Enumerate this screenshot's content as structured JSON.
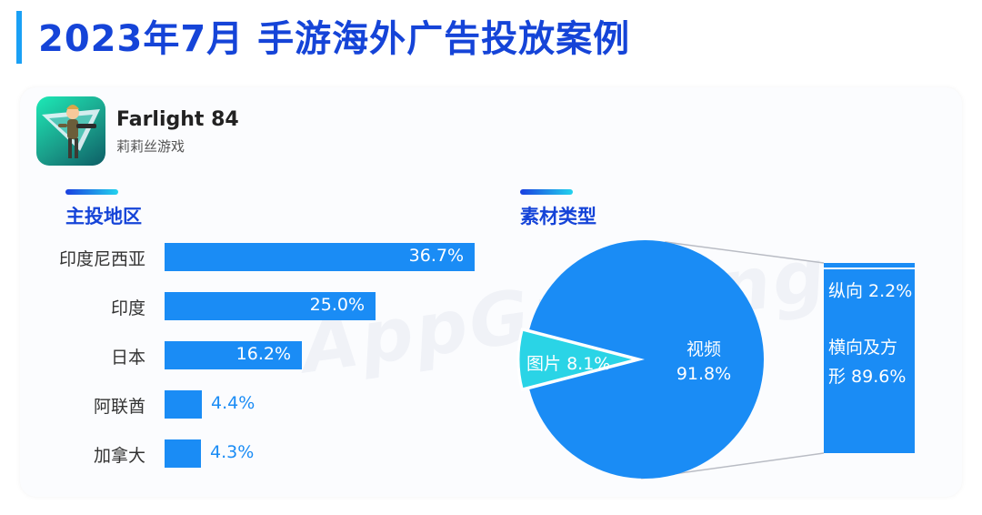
{
  "page": {
    "title": "2023年7月 手游海外广告投放案例"
  },
  "app": {
    "name": "Farlight 84",
    "developer": "莉莉丝游戏",
    "icon": "game-character-icon"
  },
  "watermark": "AppGrowing",
  "colors": {
    "title": "#1544d8",
    "accent": "#1aa0f5",
    "bar": "#1a8cf5",
    "pie_small": "#2ad4e6"
  },
  "regions": {
    "title": "主投地区",
    "chart_data": {
      "type": "bar",
      "orientation": "horizontal",
      "categories": [
        "印度尼西亚",
        "印度",
        "日本",
        "阿联酋",
        "加拿大"
      ],
      "values": [
        36.7,
        25.0,
        16.2,
        4.4,
        4.3
      ],
      "value_labels": [
        "36.7%",
        "25.0%",
        "16.2%",
        "4.4%",
        "4.3%"
      ],
      "unit": "%",
      "xlim": [
        0,
        36.7
      ],
      "grid": false
    }
  },
  "materials": {
    "title": "素材类型",
    "chart_data": [
      {
        "type": "pie",
        "labels": [
          "视频",
          "图片"
        ],
        "values": [
          91.8,
          8.1
        ],
        "value_labels": [
          "91.8%",
          "8.1%"
        ],
        "colors": [
          "#1a8cf5",
          "#2ad4e6"
        ]
      },
      {
        "type": "bar",
        "stacked": true,
        "parent": "视频",
        "labels": [
          "纵向",
          "横向及方形"
        ],
        "values": [
          2.2,
          89.6
        ],
        "value_labels": [
          "纵向 2.2%",
          "横向及方形 89.6%"
        ],
        "value_label_lines": [
          "横向及方",
          "形 89.6%"
        ]
      }
    ]
  }
}
